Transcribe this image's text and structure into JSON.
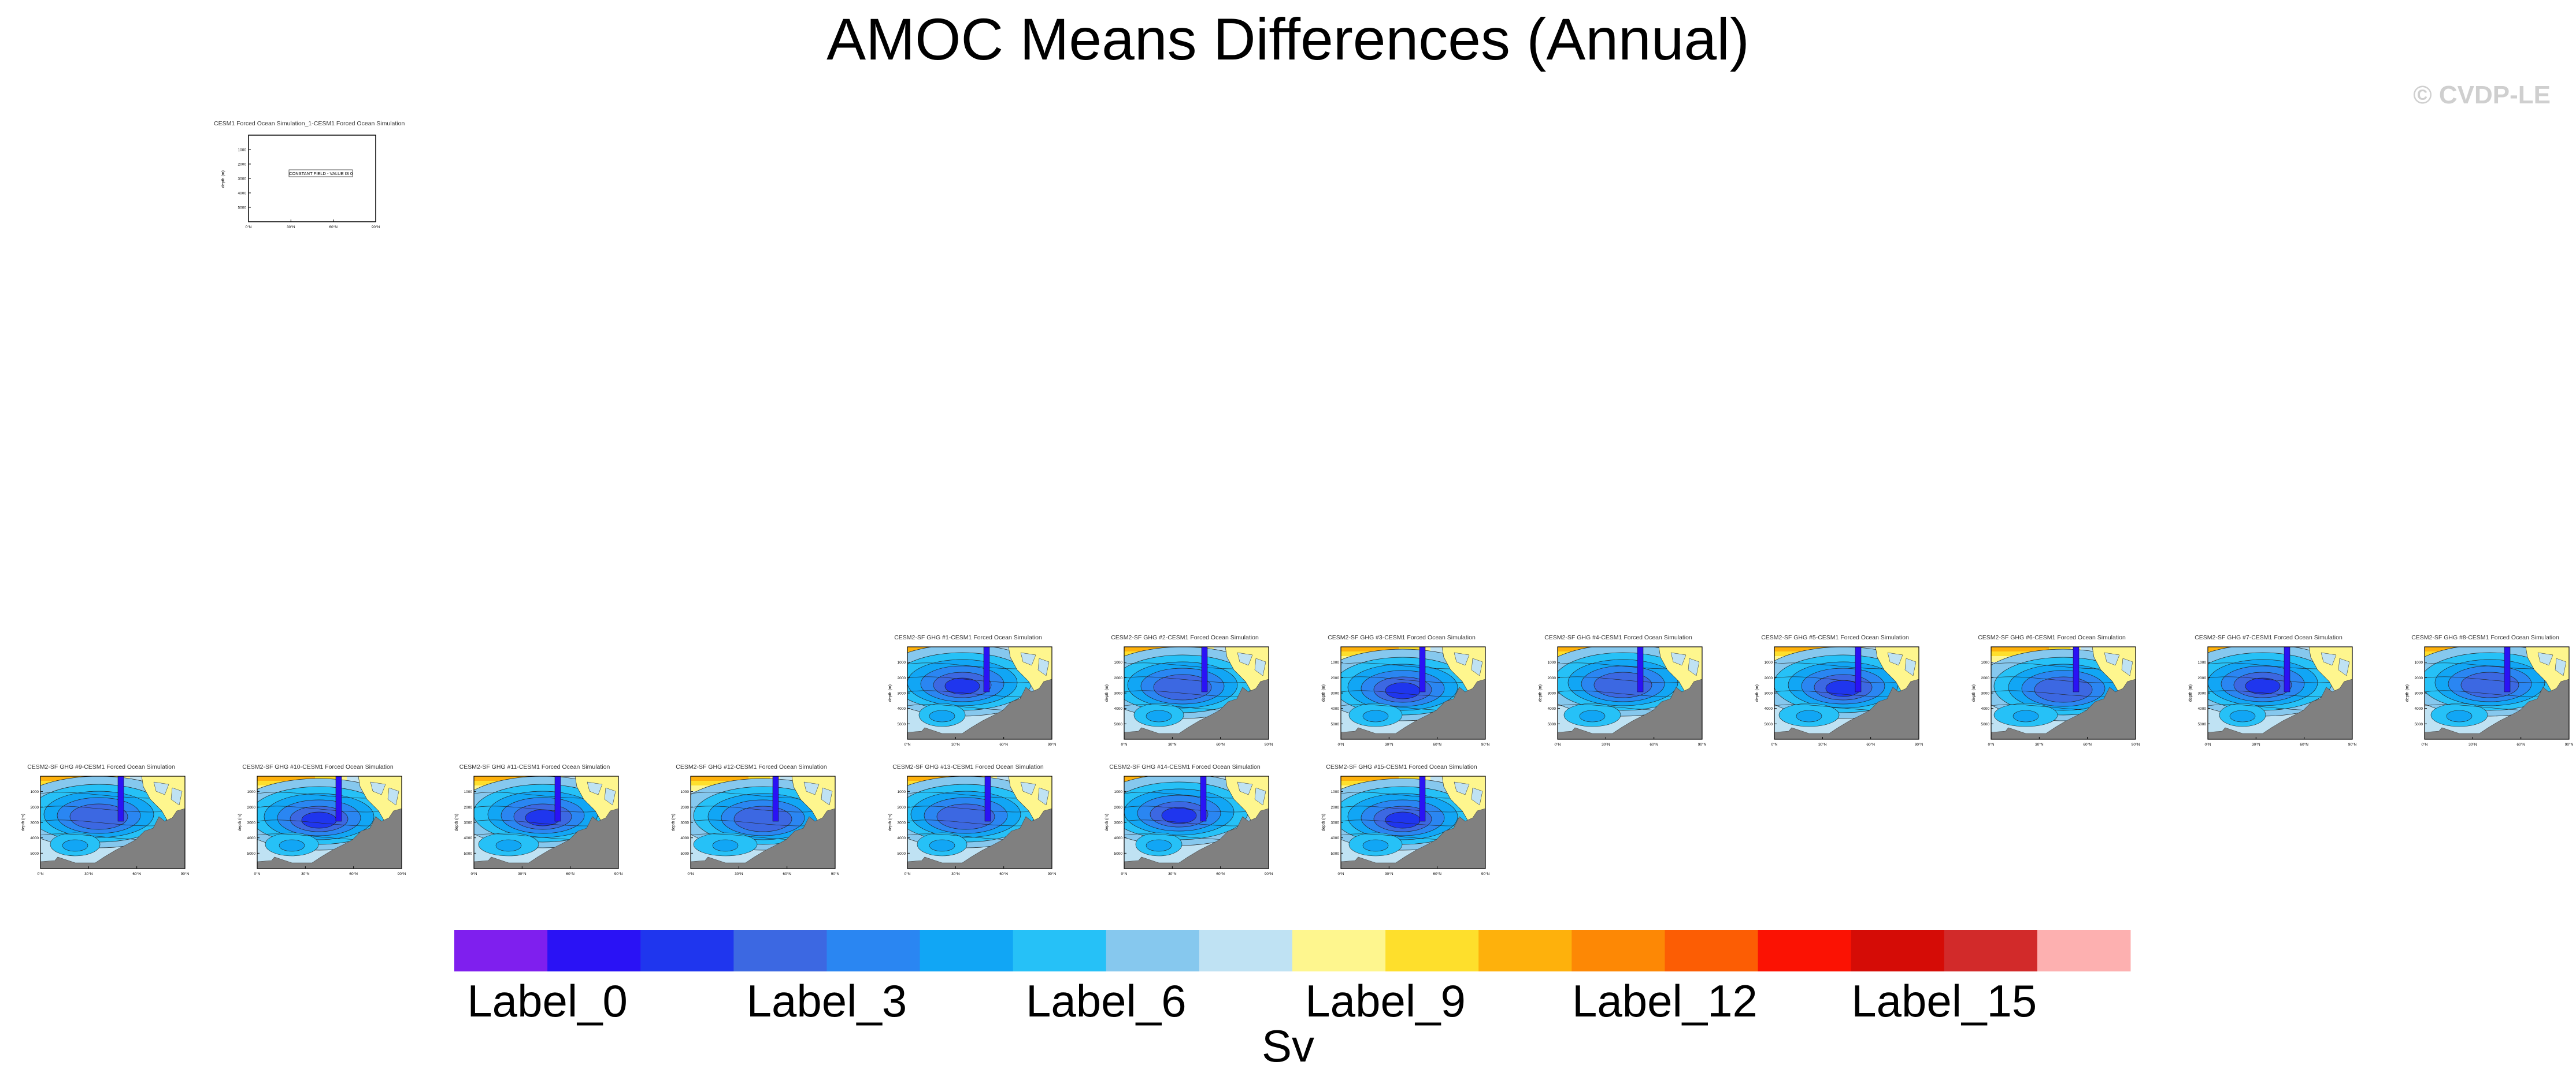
{
  "title": "AMOC Means Differences (Annual)",
  "watermark": "© CVDP-LE",
  "colors": {
    "land": "#808080",
    "line": "#000000",
    "colorbar": [
      "#7f1fee",
      "#2a12f5",
      "#1f36ee",
      "#3c68e2",
      "#2a86f2",
      "#11a6f5",
      "#26c1f7",
      "#86c8ee",
      "#bfe2f3",
      "#fef68e",
      "#fedf2c",
      "#feb10c",
      "#fd8805",
      "#fc5d04",
      "#fb1203",
      "#d50c06",
      "#d22a2a",
      "#fdb0b0"
    ]
  },
  "chart_data": {
    "type": "heatmap",
    "title": "AMOC Means Differences (Annual)",
    "units": "Sv",
    "colorbar": {
      "n_colors": 18,
      "tick_labels": [
        "Label_0",
        "Label_3",
        "Label_6",
        "Label_9",
        "Label_12",
        "Label_15"
      ],
      "tick_indices": [
        1,
        4,
        7,
        10,
        13,
        16
      ]
    },
    "axes": {
      "ylabel": "depth (m)",
      "xticks": [
        "0°N",
        "30°N",
        "60°N",
        "90°N"
      ],
      "yticks": [
        "1000",
        "2000",
        "3000",
        "4000",
        "5000"
      ]
    },
    "reference_panel": {
      "title": "CESM1 Forced Ocean Simulation_1-CESM1 Forced Ocean Simulation",
      "annotation": "CONSTANT FIELD - VALUE IS 0"
    },
    "panels": [
      {
        "title": "CESM2-SF GHG #1-CESM1 Forced Ocean Simulation",
        "pattern": 0
      },
      {
        "title": "CESM2-SF GHG #2-CESM1 Forced Ocean Simulation",
        "pattern": 1
      },
      {
        "title": "CESM2-SF GHG #3-CESM1 Forced Ocean Simulation",
        "pattern": 2
      },
      {
        "title": "CESM2-SF GHG #4-CESM1 Forced Ocean Simulation",
        "pattern": 3
      },
      {
        "title": "CESM2-SF GHG #5-CESM1 Forced Ocean Simulation",
        "pattern": 4
      },
      {
        "title": "CESM2-SF GHG #6-CESM1 Forced Ocean Simulation",
        "pattern": 5
      },
      {
        "title": "CESM2-SF GHG #7-CESM1 Forced Ocean Simulation",
        "pattern": 0
      },
      {
        "title": "CESM2-SF GHG #8-CESM1 Forced Ocean Simulation",
        "pattern": 3
      },
      {
        "title": "CESM2-SF GHG #9-CESM1 Forced Ocean Simulation",
        "pattern": 1
      },
      {
        "title": "CESM2-SF GHG #10-CESM1 Forced Ocean Simulation",
        "pattern": 2
      },
      {
        "title": "CESM2-SF GHG #11-CESM1 Forced Ocean Simulation",
        "pattern": 4
      },
      {
        "title": "CESM2-SF GHG #12-CESM1 Forced Ocean Simulation",
        "pattern": 5
      },
      {
        "title": "CESM2-SF GHG #13-CESM1 Forced Ocean Simulation",
        "pattern": 1
      },
      {
        "title": "CESM2-SF GHG #14-CESM1 Forced Ocean Simulation",
        "pattern": 0
      },
      {
        "title": "CESM2-SF GHG #15-CESM1 Forced Ocean Simulation",
        "pattern": 2
      }
    ]
  }
}
